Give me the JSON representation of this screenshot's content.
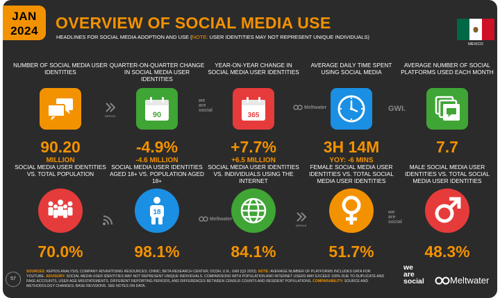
{
  "header": {
    "month": "JAN",
    "year": "2024",
    "title": "OVERVIEW OF SOCIAL MEDIA USE",
    "subtitle_pre": "HEADLINES FOR SOCIAL MEDIA ADOPTION AND USE (",
    "subtitle_note": "NOTE:",
    "subtitle_post": " USER IDENTITIES MAY NOT REPRESENT UNIQUE INDIVIDUALS)",
    "country": "MEXICO"
  },
  "colors": {
    "accent": "#f39200",
    "background": "#2b2b2b",
    "flag_green": "#006847",
    "flag_red": "#ce1126"
  },
  "row1": [
    {
      "label": "NUMBER OF SOCIAL MEDIA USER IDENTITIES",
      "icon": "chat-bubbles-icon",
      "value": "90.20",
      "sub": "MILLION"
    },
    {
      "label": "QUARTER-ON-QUARTER CHANGE IN SOCIAL MEDIA USER IDENTITIES",
      "icon": "calendar-90-icon",
      "icon_text": "90",
      "value": "-4.9%",
      "sub": "-4.6 MILLION"
    },
    {
      "label": "YEAR-ON-YEAR CHANGE IN SOCIAL MEDIA USER IDENTITIES",
      "icon": "calendar-365-icon",
      "icon_text": "365",
      "value": "+7.7%",
      "sub": "+6.5 MILLION"
    },
    {
      "label": "AVERAGE DAILY TIME SPENT USING SOCIAL MEDIA",
      "icon": "clock-icon",
      "value": "3H 14M",
      "sub": "YOY: -6 MINS"
    },
    {
      "label": "AVERAGE NUMBER OF SOCIAL PLATFORMS USED EACH MONTH",
      "icon": "stacked-windows-icon",
      "value": "7.7"
    }
  ],
  "row2": [
    {
      "label": "SOCIAL MEDIA USER IDENTITIES vs. TOTAL POPULATION",
      "icon": "population-icon",
      "value": "70.0%"
    },
    {
      "label": "SOCIAL MEDIA USER IDENTITIES AGED 18+ vs. POPULATION AGED 18+",
      "icon": "person-18-icon",
      "icon_text": "18",
      "value": "98.1%"
    },
    {
      "label": "SOCIAL MEDIA USER IDENTITIES vs. INDIVIDUALS USING THE INTERNET",
      "icon": "globe-icon",
      "value": "84.1%"
    },
    {
      "label": "FEMALE SOCIAL MEDIA USER IDENTITIES vs. TOTAL SOCIAL MEDIA USER IDENTITIES",
      "icon": "female-symbol-icon",
      "value": "51.7%"
    },
    {
      "label": "MALE SOCIAL MEDIA USER IDENTITIES vs. TOTAL SOCIAL MEDIA USER IDENTITIES",
      "icon": "male-symbol-icon",
      "value": "48.3%"
    }
  ],
  "watermarks": {
    "kepios": "KEPIOS",
    "was": "we are social",
    "was_lines": [
      "we",
      "are",
      "social"
    ],
    "meltwater": "Meltwater",
    "gwi": "GWI."
  },
  "footer": {
    "sources_label": "SOURCES:",
    "sources_text": " KEPIOS ANALYSIS; COMPANY ADVERTISING RESOURCES; CNNIC; BETA RESEARCH CENTER; OCDH; U.N.; GWI (Q3 2023).",
    "note_label": " NOTE:",
    "note_text": " AVERAGE NUMBER OF PLATFORMS INCLUDES DATA FOR YOUTUBE.",
    "advisory_label": "ADVISORY:",
    "advisory_text": " SOCIAL MEDIA USER IDENTITIES MAY NOT REPRESENT UNIQUE INDIVIDUALS. COMPARISONS WITH POPULATION AND INTERNET USERS MAY EXCEED 100% DUE TO DUPLICATE AND FAKE ACCOUNTS, USER AGE MISSTATEMENTS, DIFFERENT REPORTING PERIODS, AND DIFFERENCES BETWEEN CENSUS COUNTS AND RESIDENT POPULATIONS.",
    "comparability_label": " COMPARABILITY:",
    "comparability_text": " SOURCE AND METHODOLOGY CHANGES; BASE REVISIONS. SEE NOTES ON DATA.",
    "page": "57"
  },
  "brand": {
    "was_lines": [
      "we",
      "are",
      "social"
    ],
    "meltwater": "Meltwater"
  }
}
